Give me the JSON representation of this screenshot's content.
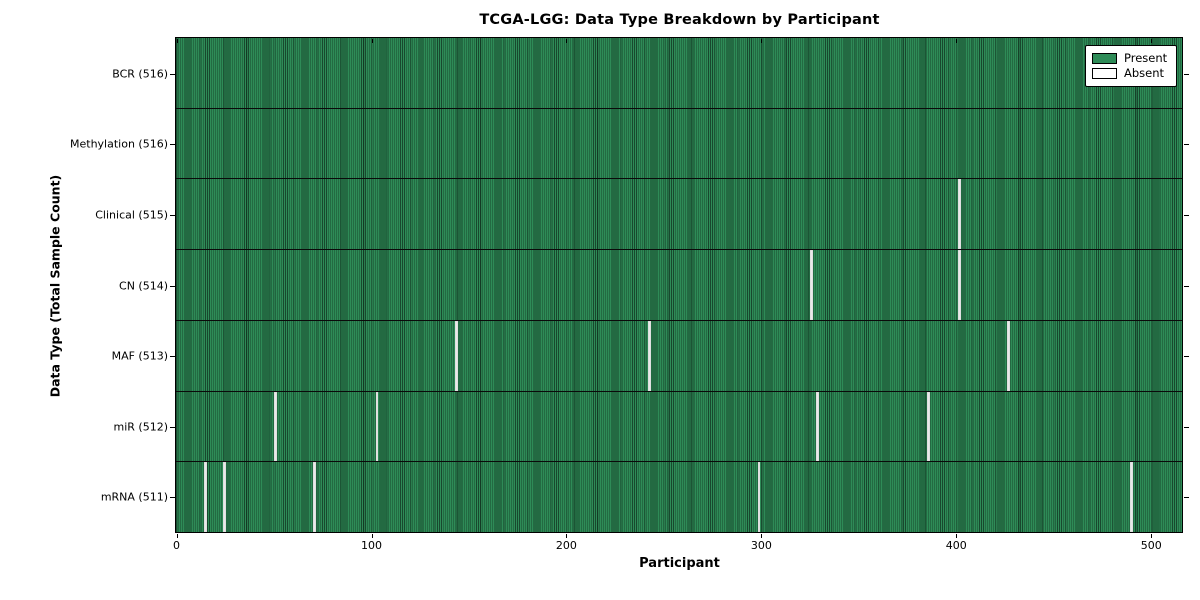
{
  "figure": {
    "title": "TCGA-LGG: Data Type Breakdown by Participant",
    "x_axis_label": "Participant",
    "y_axis_label": "Data Type (Total Sample Count)",
    "legend": {
      "entries": [
        {
          "label": "Present",
          "color": "#2E8B57"
        },
        {
          "label": "Absent",
          "color": "#FFFFFF"
        }
      ]
    }
  },
  "chart_data": {
    "type": "heatmap",
    "title": "TCGA-LGG: Data Type Breakdown by Participant",
    "xlabel": "Participant",
    "ylabel": "Data Type (Total Sample Count)",
    "x_range": [
      0,
      516
    ],
    "x_ticks": [
      0,
      100,
      200,
      300,
      400,
      500
    ],
    "total_participants": 516,
    "legend_position": "upper right",
    "colors": {
      "present": "#2E8B57",
      "absent": "#FFFFFF",
      "gap_render": "#E9E9E9",
      "bar_edge": "#000000"
    },
    "rows": [
      {
        "label": "BCR (516)",
        "data_type": "BCR",
        "present_count": 516,
        "absent_count": 0,
        "absent_participants": []
      },
      {
        "label": "Methylation (516)",
        "data_type": "Methylation",
        "present_count": 516,
        "absent_count": 0,
        "absent_participants": []
      },
      {
        "label": "Clinical (515)",
        "data_type": "Clinical",
        "present_count": 515,
        "absent_count": 1,
        "absent_participants": [
          402
        ]
      },
      {
        "label": "CN (514)",
        "data_type": "CN",
        "present_count": 514,
        "absent_count": 2,
        "absent_participants": [
          326,
          402
        ]
      },
      {
        "label": "MAF (513)",
        "data_type": "MAF",
        "present_count": 513,
        "absent_count": 3,
        "absent_participants": [
          144,
          243,
          427
        ]
      },
      {
        "label": "miR (512)",
        "data_type": "miR",
        "present_count": 512,
        "absent_count": 4,
        "absent_participants": [
          51,
          103,
          329,
          386
        ]
      },
      {
        "label": "mRNA (511)",
        "data_type": "mRNA",
        "present_count": 511,
        "absent_count": 5,
        "absent_participants": [
          15,
          25,
          71,
          299,
          490
        ]
      }
    ]
  }
}
